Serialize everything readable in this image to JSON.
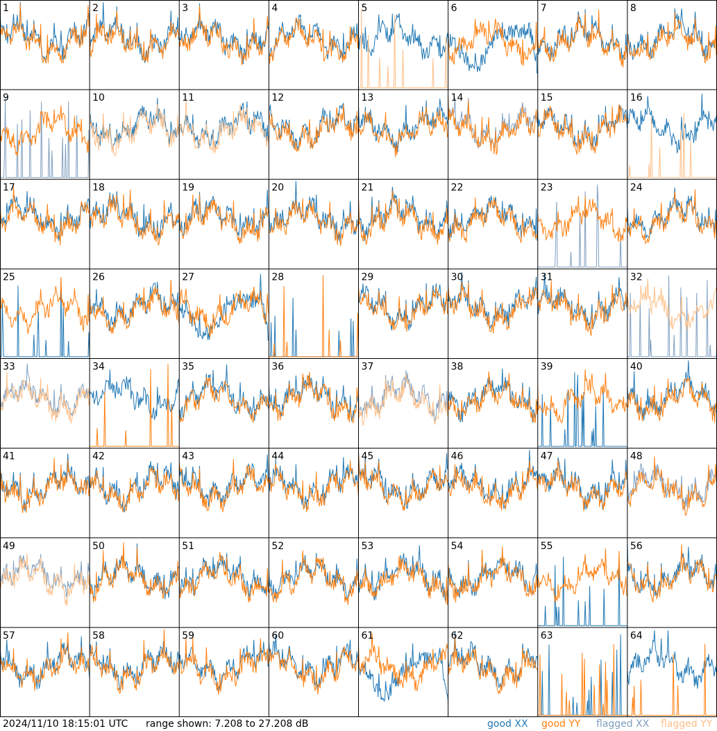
{
  "chart_data": {
    "type": "line",
    "layout": "small-multiples grid 8x8",
    "timestamp": "2024/11/10 18:15:01 UTC",
    "range_label": "range shown: 7.208 to 27.208 dB",
    "ylim": [
      7.208,
      27.208
    ],
    "legend": [
      {
        "key": "good_xx",
        "label": "good XX",
        "color": "#1f77b4"
      },
      {
        "key": "good_yy",
        "label": "good YY",
        "color": "#ff7f0e"
      },
      {
        "key": "flagged_xx",
        "label": "flagged XX",
        "color": "#7f9fbf"
      },
      {
        "key": "flagged_yy",
        "label": "flagged YY",
        "color": "#ffbf87"
      }
    ],
    "panels": [
      {
        "id": "1",
        "xx": "good",
        "yy": "good",
        "xx_mode": "normal",
        "yy_mode": "normal"
      },
      {
        "id": "2",
        "xx": "good",
        "yy": "good",
        "xx_mode": "normal",
        "yy_mode": "normal"
      },
      {
        "id": "3",
        "xx": "good",
        "yy": "good",
        "xx_mode": "normal",
        "yy_mode": "normal"
      },
      {
        "id": "4",
        "xx": "good",
        "yy": "good",
        "xx_mode": "normal",
        "yy_mode": "normal"
      },
      {
        "id": "5",
        "xx": "good",
        "yy": "flagged",
        "xx_mode": "normal",
        "yy_mode": "spikes"
      },
      {
        "id": "6",
        "xx": "good",
        "yy": "good",
        "xx_mode": "dip",
        "yy_mode": "normal"
      },
      {
        "id": "7",
        "xx": "good",
        "yy": "good",
        "xx_mode": "normal",
        "yy_mode": "normal"
      },
      {
        "id": "8",
        "xx": "good",
        "yy": "good",
        "xx_mode": "normal",
        "yy_mode": "normal"
      },
      {
        "id": "9",
        "xx": "flagged",
        "yy": "good",
        "xx_mode": "spikes",
        "yy_mode": "normal"
      },
      {
        "id": "10",
        "xx": "good",
        "yy": "flagged",
        "xx_mode": "normal",
        "yy_mode": "normal"
      },
      {
        "id": "11",
        "xx": "good",
        "yy": "flagged",
        "xx_mode": "normal",
        "yy_mode": "normal"
      },
      {
        "id": "12",
        "xx": "good",
        "yy": "good",
        "xx_mode": "normal",
        "yy_mode": "normal"
      },
      {
        "id": "13",
        "xx": "good",
        "yy": "good",
        "xx_mode": "normal",
        "yy_mode": "normal"
      },
      {
        "id": "14",
        "xx": "flagged",
        "yy": "good",
        "xx_mode": "normal",
        "yy_mode": "normal"
      },
      {
        "id": "15",
        "xx": "good",
        "yy": "good",
        "xx_mode": "normal",
        "yy_mode": "normal"
      },
      {
        "id": "16",
        "xx": "good",
        "yy": "flagged",
        "xx_mode": "normal",
        "yy_mode": "spikes"
      },
      {
        "id": "17",
        "xx": "good",
        "yy": "good",
        "xx_mode": "normal",
        "yy_mode": "normal"
      },
      {
        "id": "18",
        "xx": "good",
        "yy": "good",
        "xx_mode": "normal",
        "yy_mode": "normal"
      },
      {
        "id": "19",
        "xx": "good",
        "yy": "good",
        "xx_mode": "normal",
        "yy_mode": "normal"
      },
      {
        "id": "20",
        "xx": "good",
        "yy": "good",
        "xx_mode": "normal",
        "yy_mode": "normal"
      },
      {
        "id": "21",
        "xx": "good",
        "yy": "good",
        "xx_mode": "normal",
        "yy_mode": "normal"
      },
      {
        "id": "22",
        "xx": "good",
        "yy": "good",
        "xx_mode": "normal",
        "yy_mode": "normal"
      },
      {
        "id": "23",
        "xx": "flagged",
        "yy": "good",
        "xx_mode": "spikes",
        "yy_mode": "normal"
      },
      {
        "id": "24",
        "xx": "good",
        "yy": "good",
        "xx_mode": "normal",
        "yy_mode": "normal"
      },
      {
        "id": "25",
        "xx": "good",
        "yy": "good",
        "xx_mode": "spikes",
        "yy_mode": "normal"
      },
      {
        "id": "26",
        "xx": "good",
        "yy": "good",
        "xx_mode": "normal",
        "yy_mode": "normal"
      },
      {
        "id": "27",
        "xx": "good",
        "yy": "good",
        "xx_mode": "dip",
        "yy_mode": "normal"
      },
      {
        "id": "28",
        "xx": "good",
        "yy": "good",
        "xx_mode": "spikes",
        "yy_mode": "spikes"
      },
      {
        "id": "29",
        "xx": "good",
        "yy": "good",
        "xx_mode": "normal",
        "yy_mode": "normal"
      },
      {
        "id": "30",
        "xx": "good",
        "yy": "good",
        "xx_mode": "normal",
        "yy_mode": "normal"
      },
      {
        "id": "31",
        "xx": "good",
        "yy": "good",
        "xx_mode": "normal",
        "yy_mode": "normal"
      },
      {
        "id": "32",
        "xx": "flagged",
        "yy": "flagged",
        "xx_mode": "spikes",
        "yy_mode": "normal"
      },
      {
        "id": "33",
        "xx": "flagged",
        "yy": "flagged",
        "xx_mode": "normal",
        "yy_mode": "normal"
      },
      {
        "id": "34",
        "xx": "good",
        "yy": "good",
        "xx_mode": "normal",
        "yy_mode": "spikes"
      },
      {
        "id": "35",
        "xx": "good",
        "yy": "good",
        "xx_mode": "normal",
        "yy_mode": "normal"
      },
      {
        "id": "36",
        "xx": "good",
        "yy": "good",
        "xx_mode": "normal",
        "yy_mode": "normal"
      },
      {
        "id": "37",
        "xx": "flagged",
        "yy": "flagged",
        "xx_mode": "normal",
        "yy_mode": "normal"
      },
      {
        "id": "38",
        "xx": "good",
        "yy": "good",
        "xx_mode": "normal",
        "yy_mode": "normal"
      },
      {
        "id": "39",
        "xx": "good",
        "yy": "good",
        "xx_mode": "spikes",
        "yy_mode": "normal"
      },
      {
        "id": "40",
        "xx": "good",
        "yy": "good",
        "xx_mode": "normal",
        "yy_mode": "normal"
      },
      {
        "id": "41",
        "xx": "good",
        "yy": "good",
        "xx_mode": "normal",
        "yy_mode": "normal"
      },
      {
        "id": "42",
        "xx": "good",
        "yy": "good",
        "xx_mode": "normal",
        "yy_mode": "normal"
      },
      {
        "id": "43",
        "xx": "good",
        "yy": "good",
        "xx_mode": "normal",
        "yy_mode": "normal"
      },
      {
        "id": "44",
        "xx": "good",
        "yy": "good",
        "xx_mode": "normal",
        "yy_mode": "normal"
      },
      {
        "id": "45",
        "xx": "good",
        "yy": "good",
        "xx_mode": "normal",
        "yy_mode": "normal"
      },
      {
        "id": "46",
        "xx": "good",
        "yy": "good",
        "xx_mode": "normal",
        "yy_mode": "normal"
      },
      {
        "id": "47",
        "xx": "good",
        "yy": "good",
        "xx_mode": "normal",
        "yy_mode": "normal"
      },
      {
        "id": "48",
        "xx": "flagged",
        "yy": "good",
        "xx_mode": "normal",
        "yy_mode": "normal"
      },
      {
        "id": "49",
        "xx": "flagged",
        "yy": "flagged",
        "xx_mode": "normal",
        "yy_mode": "normal"
      },
      {
        "id": "50",
        "xx": "good",
        "yy": "good",
        "xx_mode": "normal",
        "yy_mode": "normal"
      },
      {
        "id": "51",
        "xx": "good",
        "yy": "good",
        "xx_mode": "normal",
        "yy_mode": "normal"
      },
      {
        "id": "52",
        "xx": "good",
        "yy": "good",
        "xx_mode": "normal",
        "yy_mode": "normal"
      },
      {
        "id": "53",
        "xx": "good",
        "yy": "good",
        "xx_mode": "normal",
        "yy_mode": "normal"
      },
      {
        "id": "54",
        "xx": "good",
        "yy": "good",
        "xx_mode": "normal",
        "yy_mode": "normal"
      },
      {
        "id": "55",
        "xx": "good",
        "yy": "good",
        "xx_mode": "spikes",
        "yy_mode": "normal"
      },
      {
        "id": "56",
        "xx": "good",
        "yy": "good",
        "xx_mode": "normal",
        "yy_mode": "normal"
      },
      {
        "id": "57",
        "xx": "good",
        "yy": "good",
        "xx_mode": "normal",
        "yy_mode": "normal"
      },
      {
        "id": "58",
        "xx": "good",
        "yy": "good",
        "xx_mode": "normal",
        "yy_mode": "normal"
      },
      {
        "id": "59",
        "xx": "good",
        "yy": "good",
        "xx_mode": "normal",
        "yy_mode": "normal"
      },
      {
        "id": "60",
        "xx": "good",
        "yy": "good",
        "xx_mode": "normal",
        "yy_mode": "normal"
      },
      {
        "id": "61",
        "xx": "good",
        "yy": "good",
        "xx_mode": "dip",
        "yy_mode": "normal"
      },
      {
        "id": "62",
        "xx": "good",
        "yy": "good",
        "xx_mode": "normal",
        "yy_mode": "normal"
      },
      {
        "id": "63",
        "xx": "good",
        "yy": "good",
        "xx_mode": "spikes",
        "yy_mode": "spikes"
      },
      {
        "id": "64",
        "xx": "good",
        "yy": "good",
        "xx_mode": "normal",
        "yy_mode": "spikes"
      }
    ]
  }
}
